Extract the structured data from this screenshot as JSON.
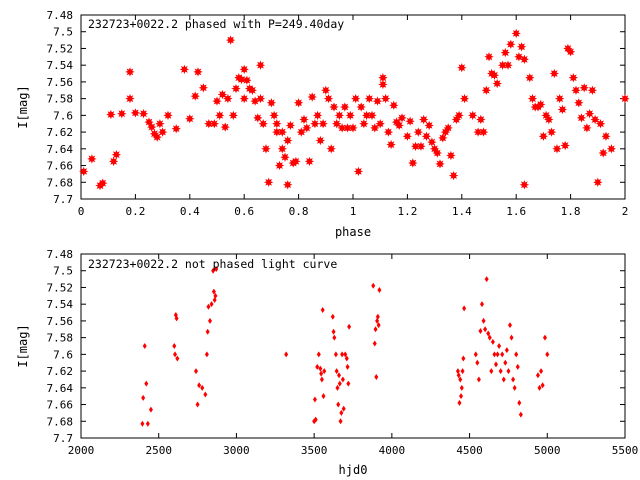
{
  "chart_data": [
    {
      "type": "scatter",
      "title": "232723+0022.2 phased with P=249.40day",
      "xlabel": "phase",
      "ylabel": "I[mag]",
      "xlim": [
        0,
        2
      ],
      "ylim": [
        7.48,
        7.7
      ],
      "y_inverted": true,
      "grid": false,
      "marker_color": "#ff0000",
      "xticks": [
        "0",
        "0.2",
        "0.4",
        "0.6",
        "0.8",
        "1",
        "1.2",
        "1.4",
        "1.6",
        "1.8",
        "2"
      ],
      "yticks": [
        "7.48",
        "7.5",
        "7.52",
        "7.54",
        "7.56",
        "7.58",
        "7.6",
        "7.62",
        "7.64",
        "7.66",
        "7.68",
        "7.7"
      ],
      "points": [
        [
          0.01,
          7.667
        ],
        [
          0.04,
          7.652
        ],
        [
          0.07,
          7.684
        ],
        [
          0.08,
          7.681
        ],
        [
          0.11,
          7.599
        ],
        [
          0.12,
          7.655
        ],
        [
          0.13,
          7.647
        ],
        [
          0.15,
          7.598
        ],
        [
          0.18,
          7.548
        ],
        [
          0.18,
          7.58
        ],
        [
          0.2,
          7.597
        ],
        [
          0.23,
          7.598
        ],
        [
          0.25,
          7.608
        ],
        [
          0.26,
          7.614
        ],
        [
          0.27,
          7.622
        ],
        [
          0.28,
          7.626
        ],
        [
          0.29,
          7.61
        ],
        [
          0.3,
          7.62
        ],
        [
          0.32,
          7.6
        ],
        [
          0.35,
          7.616
        ],
        [
          0.38,
          7.545
        ],
        [
          0.4,
          7.604
        ],
        [
          0.42,
          7.577
        ],
        [
          0.43,
          7.548
        ],
        [
          0.45,
          7.567
        ],
        [
          0.47,
          7.61
        ],
        [
          0.49,
          7.61
        ],
        [
          0.5,
          7.583
        ],
        [
          0.51,
          7.6
        ],
        [
          0.52,
          7.575
        ],
        [
          0.53,
          7.614
        ],
        [
          0.54,
          7.58
        ],
        [
          0.55,
          7.51
        ],
        [
          0.56,
          7.6
        ],
        [
          0.57,
          7.568
        ],
        [
          0.58,
          7.555
        ],
        [
          0.59,
          7.557
        ],
        [
          0.6,
          7.58
        ],
        [
          0.6,
          7.545
        ],
        [
          0.61,
          7.558
        ],
        [
          0.62,
          7.568
        ],
        [
          0.63,
          7.57
        ],
        [
          0.64,
          7.583
        ],
        [
          0.65,
          7.603
        ],
        [
          0.66,
          7.54
        ],
        [
          0.66,
          7.58
        ],
        [
          0.67,
          7.61
        ],
        [
          0.68,
          7.64
        ],
        [
          0.69,
          7.68
        ],
        [
          0.7,
          7.585
        ],
        [
          0.71,
          7.6
        ],
        [
          0.72,
          7.61
        ],
        [
          0.72,
          7.62
        ],
        [
          0.73,
          7.66
        ],
        [
          0.74,
          7.64
        ],
        [
          0.74,
          7.62
        ],
        [
          0.75,
          7.65
        ],
        [
          0.76,
          7.63
        ],
        [
          0.76,
          7.683
        ],
        [
          0.77,
          7.612
        ],
        [
          0.78,
          7.657
        ],
        [
          0.79,
          7.655
        ],
        [
          0.8,
          7.585
        ],
        [
          0.81,
          7.62
        ],
        [
          0.82,
          7.605
        ],
        [
          0.83,
          7.615
        ],
        [
          0.84,
          7.655
        ],
        [
          0.85,
          7.578
        ],
        [
          0.86,
          7.61
        ],
        [
          0.87,
          7.6
        ],
        [
          0.88,
          7.63
        ],
        [
          0.89,
          7.61
        ],
        [
          0.9,
          7.57
        ],
        [
          0.91,
          7.58
        ],
        [
          0.92,
          7.64
        ],
        [
          0.93,
          7.59
        ],
        [
          0.94,
          7.61
        ],
        [
          0.95,
          7.6
        ],
        [
          0.96,
          7.615
        ],
        [
          0.97,
          7.59
        ],
        [
          0.98,
          7.615
        ],
        [
          0.99,
          7.6
        ],
        [
          1.0,
          7.615
        ],
        [
          1.01,
          7.58
        ],
        [
          1.02,
          7.667
        ],
        [
          1.03,
          7.59
        ],
        [
          1.04,
          7.61
        ],
        [
          1.05,
          7.6
        ],
        [
          1.06,
          7.58
        ],
        [
          1.07,
          7.6
        ],
        [
          1.08,
          7.615
        ],
        [
          1.09,
          7.583
        ],
        [
          1.1,
          7.61
        ],
        [
          1.11,
          7.555
        ],
        [
          1.11,
          7.563
        ],
        [
          1.12,
          7.58
        ],
        [
          1.13,
          7.62
        ],
        [
          1.14,
          7.635
        ],
        [
          1.15,
          7.588
        ],
        [
          1.16,
          7.608
        ],
        [
          1.17,
          7.612
        ],
        [
          1.18,
          7.603
        ],
        [
          1.2,
          7.625
        ],
        [
          1.21,
          7.607
        ],
        [
          1.22,
          7.657
        ],
        [
          1.23,
          7.637
        ],
        [
          1.24,
          7.62
        ],
        [
          1.25,
          7.637
        ],
        [
          1.26,
          7.605
        ],
        [
          1.27,
          7.625
        ],
        [
          1.28,
          7.612
        ],
        [
          1.29,
          7.632
        ],
        [
          1.3,
          7.64
        ],
        [
          1.31,
          7.645
        ],
        [
          1.32,
          7.658
        ],
        [
          1.33,
          7.627
        ],
        [
          1.34,
          7.62
        ],
        [
          1.35,
          7.615
        ],
        [
          1.36,
          7.648
        ],
        [
          1.37,
          7.672
        ],
        [
          1.38,
          7.605
        ],
        [
          1.39,
          7.6
        ],
        [
          1.4,
          7.543
        ],
        [
          1.41,
          7.58
        ],
        [
          1.44,
          7.6
        ],
        [
          1.46,
          7.62
        ],
        [
          1.47,
          7.605
        ],
        [
          1.48,
          7.62
        ],
        [
          1.49,
          7.57
        ],
        [
          1.5,
          7.53
        ],
        [
          1.51,
          7.55
        ],
        [
          1.52,
          7.552
        ],
        [
          1.53,
          7.562
        ],
        [
          1.55,
          7.54
        ],
        [
          1.56,
          7.525
        ],
        [
          1.57,
          7.54
        ],
        [
          1.58,
          7.515
        ],
        [
          1.6,
          7.502
        ],
        [
          1.61,
          7.53
        ],
        [
          1.62,
          7.518
        ],
        [
          1.63,
          7.533
        ],
        [
          1.63,
          7.683
        ],
        [
          1.65,
          7.555
        ],
        [
          1.66,
          7.58
        ],
        [
          1.67,
          7.59
        ],
        [
          1.68,
          7.59
        ],
        [
          1.69,
          7.587
        ],
        [
          1.7,
          7.625
        ],
        [
          1.71,
          7.6
        ],
        [
          1.72,
          7.605
        ],
        [
          1.73,
          7.62
        ],
        [
          1.74,
          7.55
        ],
        [
          1.75,
          7.64
        ],
        [
          1.76,
          7.58
        ],
        [
          1.77,
          7.593
        ],
        [
          1.78,
          7.636
        ],
        [
          1.79,
          7.52
        ],
        [
          1.8,
          7.524
        ],
        [
          1.81,
          7.555
        ],
        [
          1.82,
          7.57
        ],
        [
          1.83,
          7.585
        ],
        [
          1.84,
          7.603
        ],
        [
          1.85,
          7.567
        ],
        [
          1.86,
          7.615
        ],
        [
          1.87,
          7.598
        ],
        [
          1.88,
          7.57
        ],
        [
          1.89,
          7.605
        ],
        [
          1.9,
          7.68
        ],
        [
          1.91,
          7.61
        ],
        [
          1.92,
          7.645
        ],
        [
          1.93,
          7.625
        ],
        [
          1.95,
          7.64
        ],
        [
          2.0,
          7.58
        ]
      ]
    },
    {
      "type": "scatter",
      "title": "232723+0022.2 not phased light curve",
      "xlabel": "hjd0",
      "ylabel": "I[mag]",
      "xlim": [
        2000,
        5500
      ],
      "ylim": [
        7.48,
        7.7
      ],
      "y_inverted": true,
      "grid": false,
      "marker_color": "#ff0000",
      "xticks": [
        "2000",
        "2500",
        "3000",
        "3500",
        "4000",
        "4500",
        "5000",
        "5500"
      ],
      "yticks": [
        "7.48",
        "7.5",
        "7.52",
        "7.54",
        "7.56",
        "7.58",
        "7.6",
        "7.62",
        "7.64",
        "7.66",
        "7.68",
        "7.7"
      ],
      "points": [
        [
          2395,
          7.683
        ],
        [
          2400,
          7.652
        ],
        [
          2410,
          7.59
        ],
        [
          2420,
          7.635
        ],
        [
          2430,
          7.683
        ],
        [
          2450,
          7.666
        ],
        [
          2600,
          7.59
        ],
        [
          2605,
          7.6
        ],
        [
          2610,
          7.553
        ],
        [
          2615,
          7.557
        ],
        [
          2620,
          7.605
        ],
        [
          2740,
          7.62
        ],
        [
          2750,
          7.66
        ],
        [
          2760,
          7.637
        ],
        [
          2780,
          7.64
        ],
        [
          2800,
          7.648
        ],
        [
          2810,
          7.6
        ],
        [
          2815,
          7.573
        ],
        [
          2820,
          7.543
        ],
        [
          2830,
          7.56
        ],
        [
          2840,
          7.54
        ],
        [
          2850,
          7.5
        ],
        [
          2855,
          7.525
        ],
        [
          2860,
          7.535
        ],
        [
          2865,
          7.53
        ],
        [
          2870,
          7.498
        ],
        [
          3320,
          7.6
        ],
        [
          3500,
          7.68
        ],
        [
          3505,
          7.654
        ],
        [
          3510,
          7.678
        ],
        [
          3520,
          7.615
        ],
        [
          3530,
          7.6
        ],
        [
          3540,
          7.617
        ],
        [
          3545,
          7.623
        ],
        [
          3550,
          7.63
        ],
        [
          3555,
          7.547
        ],
        [
          3560,
          7.65
        ],
        [
          3565,
          7.62
        ],
        [
          3620,
          7.555
        ],
        [
          3625,
          7.573
        ],
        [
          3630,
          7.58
        ],
        [
          3640,
          7.6
        ],
        [
          3645,
          7.62
        ],
        [
          3650,
          7.64
        ],
        [
          3655,
          7.66
        ],
        [
          3660,
          7.625
        ],
        [
          3665,
          7.635
        ],
        [
          3670,
          7.68
        ],
        [
          3675,
          7.67
        ],
        [
          3680,
          7.6
        ],
        [
          3685,
          7.63
        ],
        [
          3690,
          7.665
        ],
        [
          3700,
          7.6
        ],
        [
          3710,
          7.605
        ],
        [
          3715,
          7.615
        ],
        [
          3720,
          7.635
        ],
        [
          3725,
          7.567
        ],
        [
          3880,
          7.518
        ],
        [
          3890,
          7.587
        ],
        [
          3895,
          7.57
        ],
        [
          3900,
          7.627
        ],
        [
          3905,
          7.56
        ],
        [
          3910,
          7.555
        ],
        [
          3915,
          7.565
        ],
        [
          3920,
          7.523
        ],
        [
          4425,
          7.62
        ],
        [
          4430,
          7.625
        ],
        [
          4435,
          7.658
        ],
        [
          4440,
          7.63
        ],
        [
          4445,
          7.65
        ],
        [
          4450,
          7.64
        ],
        [
          4455,
          7.62
        ],
        [
          4460,
          7.605
        ],
        [
          4465,
          7.545
        ],
        [
          4540,
          7.6
        ],
        [
          4550,
          7.61
        ],
        [
          4560,
          7.63
        ],
        [
          4570,
          7.572
        ],
        [
          4580,
          7.54
        ],
        [
          4590,
          7.56
        ],
        [
          4600,
          7.57
        ],
        [
          4610,
          7.51
        ],
        [
          4620,
          7.575
        ],
        [
          4630,
          7.58
        ],
        [
          4640,
          7.62
        ],
        [
          4650,
          7.585
        ],
        [
          4660,
          7.6
        ],
        [
          4670,
          7.612
        ],
        [
          4680,
          7.6
        ],
        [
          4690,
          7.59
        ],
        [
          4700,
          7.62
        ],
        [
          4710,
          7.6
        ],
        [
          4720,
          7.63
        ],
        [
          4730,
          7.61
        ],
        [
          4740,
          7.595
        ],
        [
          4750,
          7.62
        ],
        [
          4760,
          7.565
        ],
        [
          4770,
          7.58
        ],
        [
          4780,
          7.63
        ],
        [
          4790,
          7.64
        ],
        [
          4800,
          7.6
        ],
        [
          4810,
          7.615
        ],
        [
          4820,
          7.658
        ],
        [
          4830,
          7.672
        ],
        [
          4940,
          7.625
        ],
        [
          4950,
          7.64
        ],
        [
          4960,
          7.62
        ],
        [
          4970,
          7.637
        ],
        [
          4985,
          7.58
        ],
        [
          5000,
          7.6
        ]
      ]
    }
  ]
}
